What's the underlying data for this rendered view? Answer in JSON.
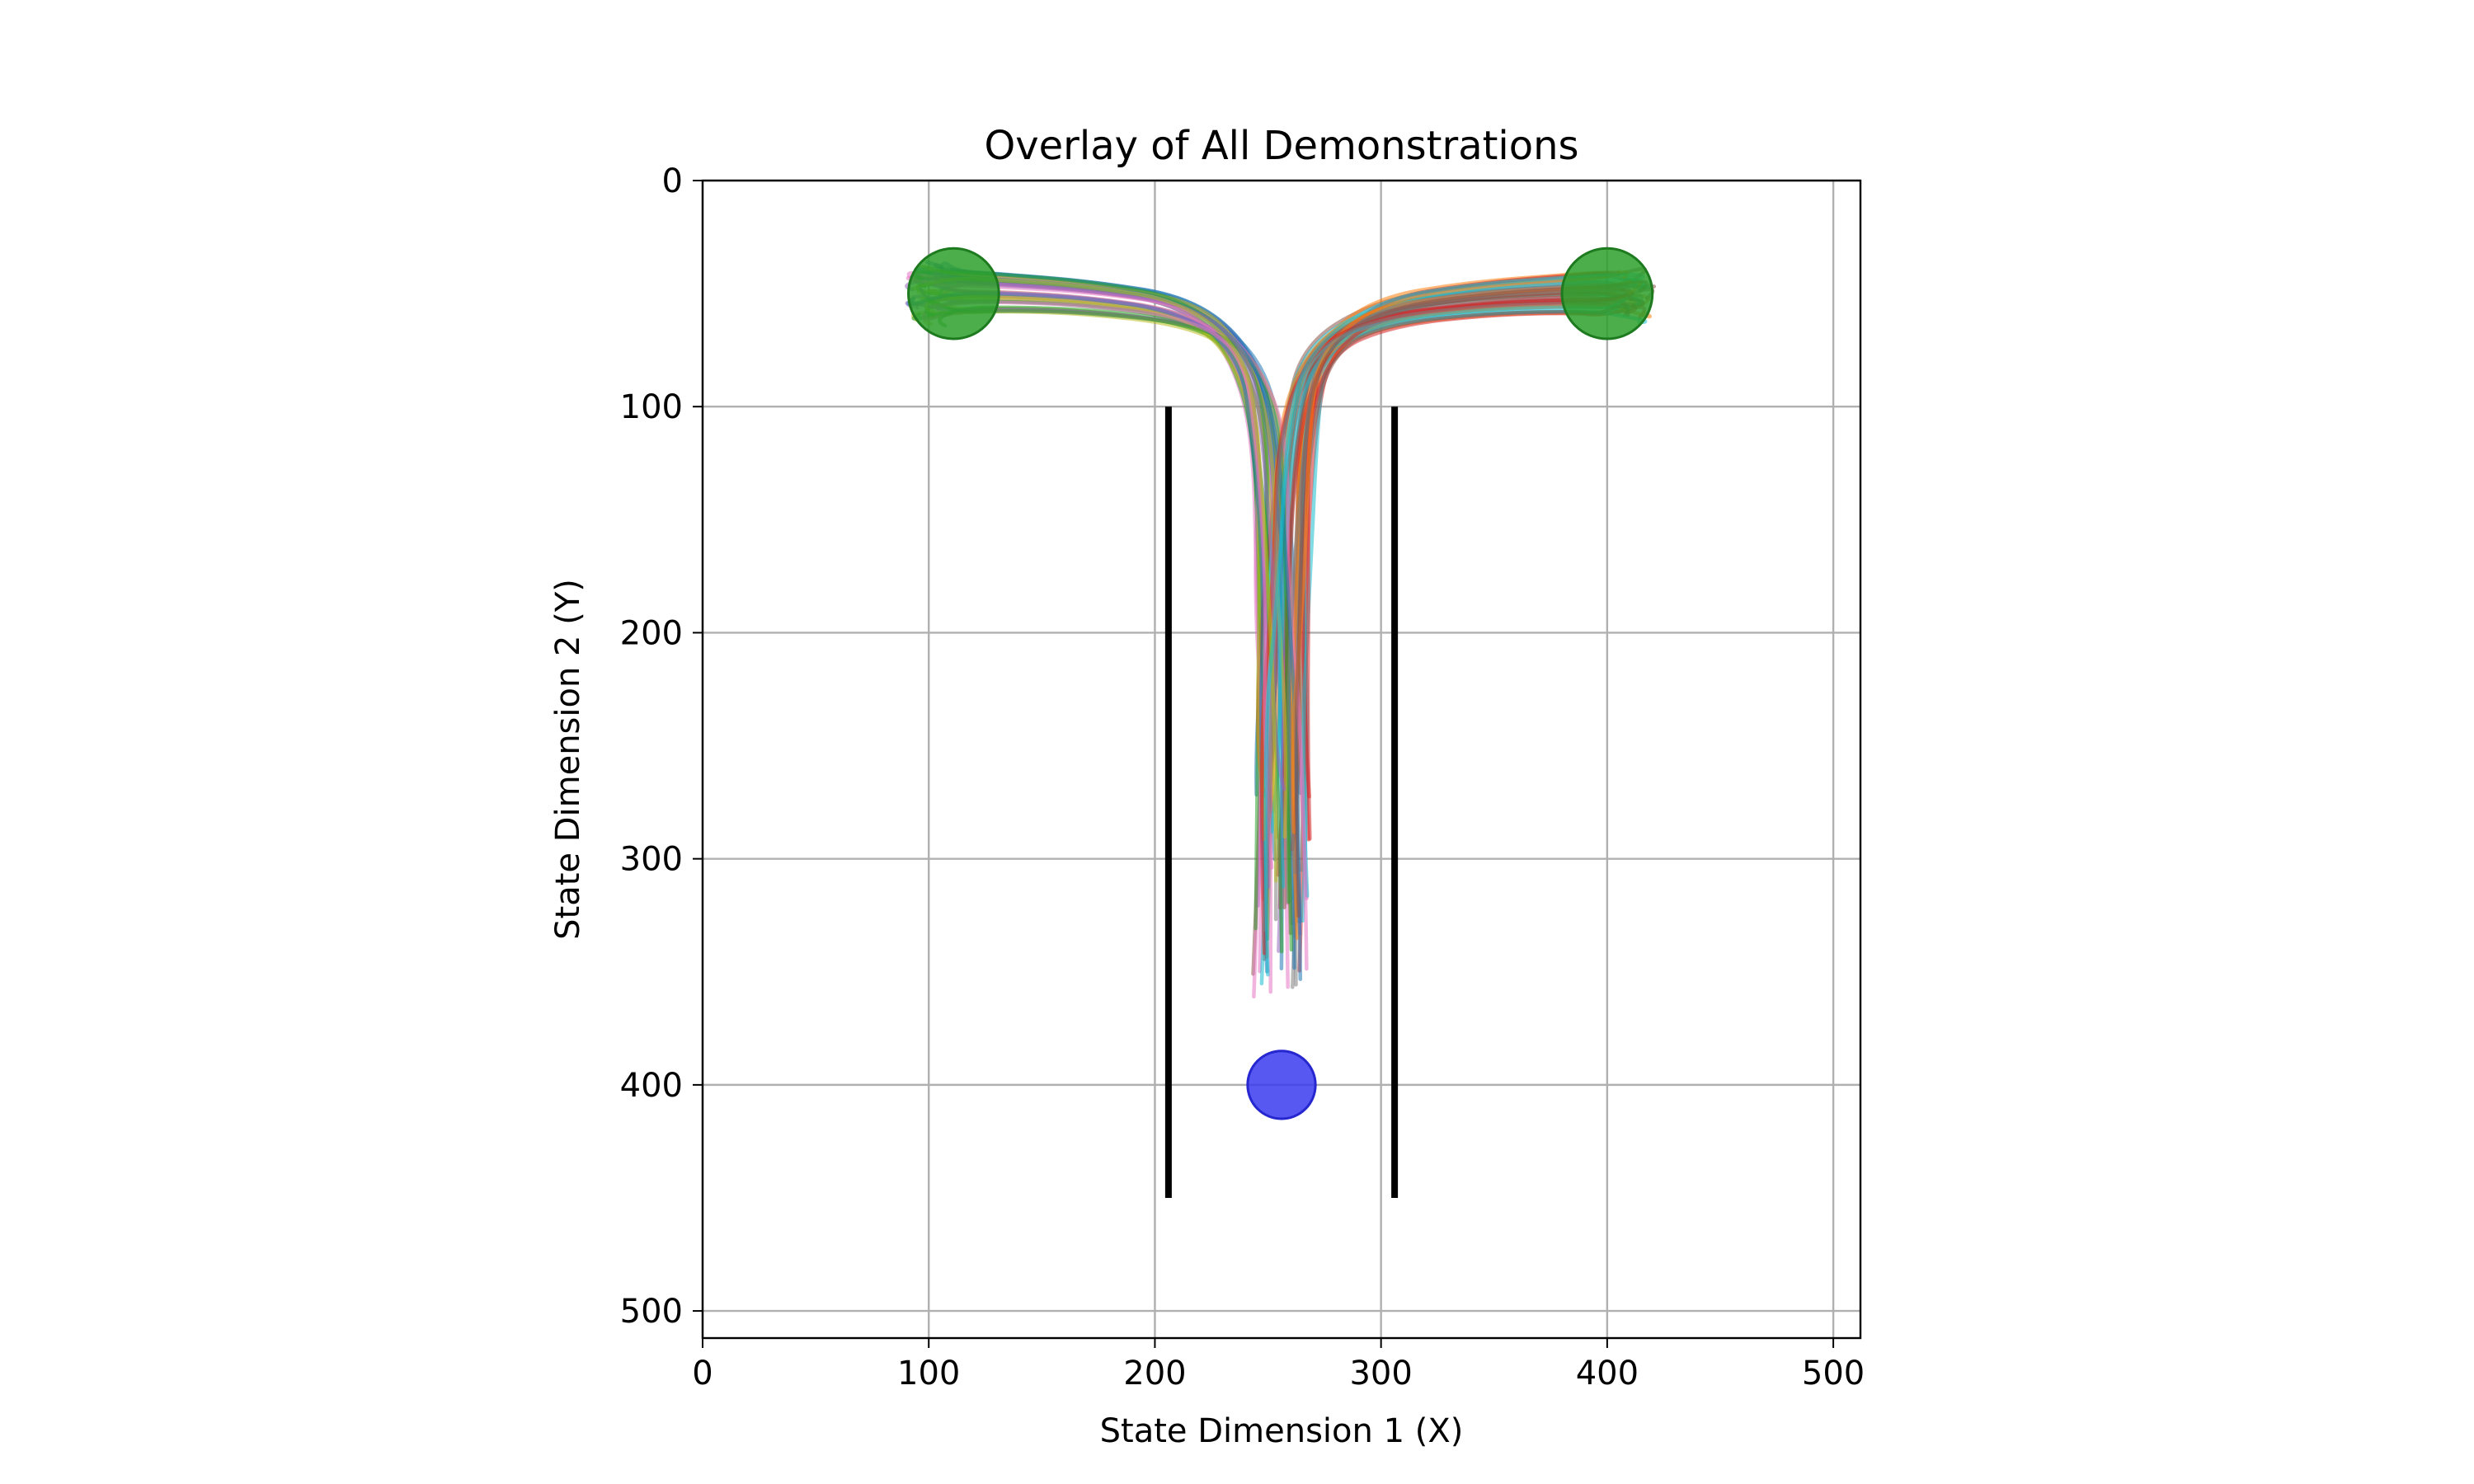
{
  "chart_data": {
    "type": "line",
    "title": "Overlay of All Demonstrations",
    "xlabel": "State Dimension 1 (X)",
    "ylabel": "State Dimension 2 (Y)",
    "xlim": [
      0,
      512
    ],
    "ylim": [
      512,
      0
    ],
    "y_inverted": true,
    "grid": true,
    "xticks": [
      0,
      100,
      200,
      300,
      400,
      500
    ],
    "yticks": [
      0,
      100,
      200,
      300,
      400,
      500
    ],
    "goals": [
      {
        "x": 111,
        "y": 50,
        "r": 20,
        "color": "#2ca02c"
      },
      {
        "x": 400,
        "y": 50,
        "r": 20,
        "color": "#2ca02c"
      }
    ],
    "start": {
      "x": 256,
      "y": 400,
      "r": 15,
      "color": "#3a3af0"
    },
    "walls": [
      {
        "x": 206,
        "y1": 100,
        "y2": 450
      },
      {
        "x": 306,
        "y1": 100,
        "y2": 450
      }
    ],
    "demonstration_count": 80,
    "palette": [
      "#1f77b4",
      "#ff7f0e",
      "#2ca02c",
      "#d62728",
      "#9467bd",
      "#8c564b",
      "#e377c2",
      "#7f7f7f",
      "#bcbd22",
      "#17becf"
    ],
    "trajectory_template": {
      "left": [
        [
          256,
          320
        ],
        [
          255,
          250
        ],
        [
          253,
          180
        ],
        [
          250,
          110
        ],
        [
          240,
          75
        ],
        [
          215,
          58
        ],
        [
          170,
          52
        ],
        [
          130,
          50
        ],
        [
          111,
          50
        ]
      ],
      "right": [
        [
          256,
          320
        ],
        [
          257,
          250
        ],
        [
          259,
          180
        ],
        [
          262,
          110
        ],
        [
          272,
          75
        ],
        [
          300,
          58
        ],
        [
          345,
          52
        ],
        [
          385,
          50
        ],
        [
          400,
          50
        ]
      ]
    },
    "trajectory_spread": {
      "start_y": [
        270,
        360
      ],
      "x_jitter": 12,
      "goal_jitter": 10
    }
  }
}
